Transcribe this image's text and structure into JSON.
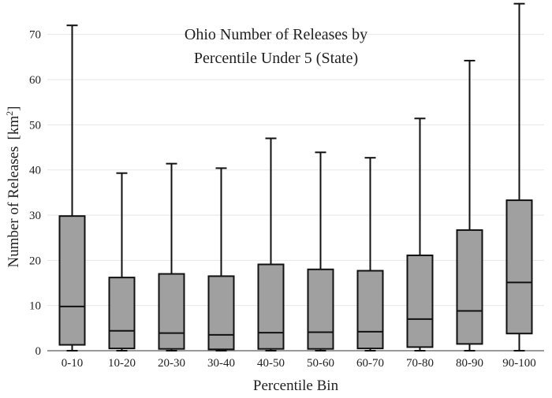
{
  "chart_data": {
    "type": "box",
    "title_lines": [
      "Ohio Number of Releases by",
      "Percentile Under 5 (State)"
    ],
    "xlabel": "Percentile Bin",
    "ylabel_main": "Number of Releases",
    "ylabel_unit_prefix": "[km",
    "ylabel_unit_sup": "2",
    "ylabel_unit_suffix": "]",
    "ylim": [
      0,
      75
    ],
    "yticks": [
      0,
      10,
      20,
      30,
      40,
      50,
      60,
      70
    ],
    "grid": true,
    "box_color": "#a0a0a0",
    "categories": [
      "0-10",
      "10-20",
      "20-30",
      "30-40",
      "40-50",
      "50-60",
      "60-70",
      "70-80",
      "80-90",
      "90-100"
    ],
    "boxes": [
      {
        "min": 0,
        "q1": 1.3,
        "median": 9.8,
        "q3": 29.8,
        "max": 72
      },
      {
        "min": 0,
        "q1": 0.5,
        "median": 4.4,
        "q3": 16.2,
        "max": 39.3
      },
      {
        "min": 0,
        "q1": 0.4,
        "median": 3.9,
        "q3": 17.0,
        "max": 41.4
      },
      {
        "min": 0,
        "q1": 0.3,
        "median": 3.5,
        "q3": 16.5,
        "max": 40.4
      },
      {
        "min": 0,
        "q1": 0.4,
        "median": 4.0,
        "q3": 19.1,
        "max": 47.0
      },
      {
        "min": 0,
        "q1": 0.4,
        "median": 4.1,
        "q3": 18.0,
        "max": 43.9
      },
      {
        "min": 0,
        "q1": 0.5,
        "median": 4.2,
        "q3": 17.7,
        "max": 42.7
      },
      {
        "min": 0,
        "q1": 0.8,
        "median": 7.0,
        "q3": 21.1,
        "max": 51.4
      },
      {
        "min": 0,
        "q1": 1.5,
        "median": 8.8,
        "q3": 26.7,
        "max": 64.2
      },
      {
        "min": 0,
        "q1": 3.8,
        "median": 15.1,
        "q3": 33.3,
        "max": 76.8
      }
    ]
  }
}
